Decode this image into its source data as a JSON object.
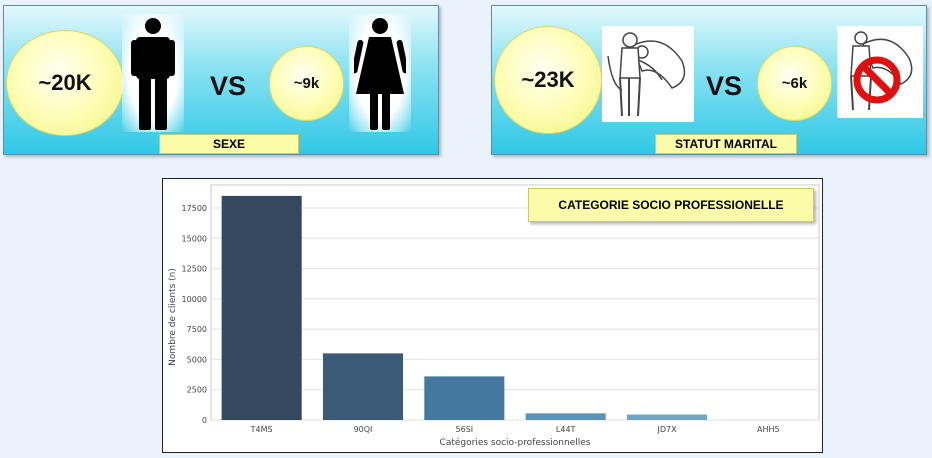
{
  "sexe_panel": {
    "left_value": "~20K",
    "vs": "VS",
    "right_value": "~9k",
    "label": "SEXE",
    "left_icon": "man-icon",
    "right_icon": "woman-icon"
  },
  "statut_panel": {
    "left_value": "~23K",
    "vs": "VS",
    "right_value": "~6k",
    "label": "STATUT MARITAL",
    "left_icon": "married-couple-icon",
    "right_icon": "not-married-couple-icon"
  },
  "colors": {
    "bubble": "#fdfdb0",
    "tag": "#fbfca7",
    "panel": "#2fc8e6"
  },
  "chart_data": {
    "type": "bar",
    "title": "CATEGORIE SOCIO PROFESSIONELLE",
    "xlabel": "Catégories socio-professionnelles",
    "ylabel": "Nombre de clients (n)",
    "categories": [
      "T4MS",
      "90QI",
      "56SI",
      "L44T",
      "JD7X",
      "AHH5"
    ],
    "values": [
      18500,
      5500,
      3600,
      550,
      450,
      10
    ],
    "colors": [
      "#34495e",
      "#3a5a78",
      "#43799e",
      "#5a93b8",
      "#6fa4c4",
      "#8dbbd6"
    ],
    "yticks": [
      0,
      2500,
      5000,
      7500,
      10000,
      12500,
      15000,
      17500
    ],
    "ylim": [
      0,
      19400
    ],
    "grid": true
  }
}
